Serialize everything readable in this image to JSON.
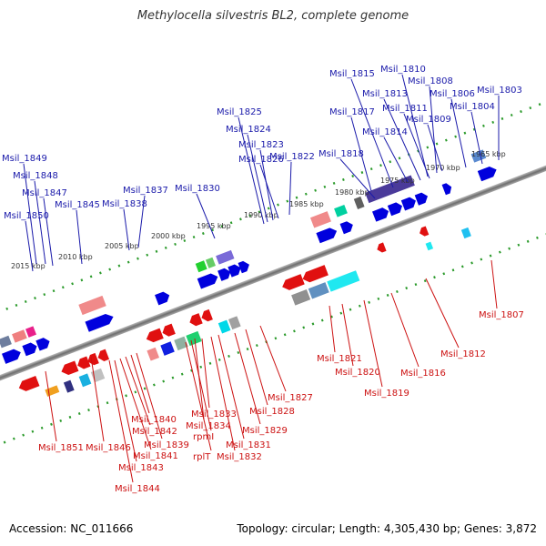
{
  "title": "Methylocella silvestris BL2, complete genome",
  "footer": {
    "accession": "Accession: NC_011666",
    "topology": "Topology: circular; Length: 4,305,430 bp; Genes: 3,872"
  },
  "ticks": [
    "2015 kbp",
    "2010 kbp",
    "2005 kbp",
    "2000 kbp",
    "1995 kbp",
    "1990 kbp",
    "1985 kbp",
    "1980 kbp",
    "1975 kbp",
    "1970 kbp",
    "1965 kbp"
  ],
  "upper_labels": [
    "Msil_1849",
    "Msil_1848",
    "Msil_1847",
    "Msil_1850",
    "Msil_1845",
    "Msil_1837",
    "Msil_1838",
    "Msil_1830",
    "Msil_1825",
    "Msil_1824",
    "Msil_1823",
    "Msil_1826",
    "Msil_1822",
    "Msil_1818",
    "Msil_1817",
    "Msil_1815",
    "Msil_1813",
    "Msil_1810",
    "Msil_1808",
    "Msil_1811",
    "Msil_1814",
    "Msil_1809",
    "Msil_1806",
    "Msil_1804",
    "Msil_1803"
  ],
  "lower_labels": [
    "Msil_1851",
    "Msil_1846",
    "Msil_1844",
    "Msil_1843",
    "Msil_1841",
    "Msil_1842",
    "Msil_1840",
    "Msil_1839",
    "rpmI",
    "rplT",
    "Msil_1834",
    "Msil_1833",
    "Msil_1832",
    "Msil_1831",
    "Msil_1829",
    "Msil_1828",
    "Msil_1827",
    "Msil_1821",
    "Msil_1820",
    "Msil_1819",
    "Msil_1816",
    "Msil_1812",
    "Msil_1807"
  ],
  "colors": {
    "forward": "#0000dd",
    "reverse": "#e01010",
    "label_forward": "#1a1aaa",
    "label_reverse": "#cc1111",
    "backbone": "#808080",
    "tick": "#2a9a2a"
  }
}
